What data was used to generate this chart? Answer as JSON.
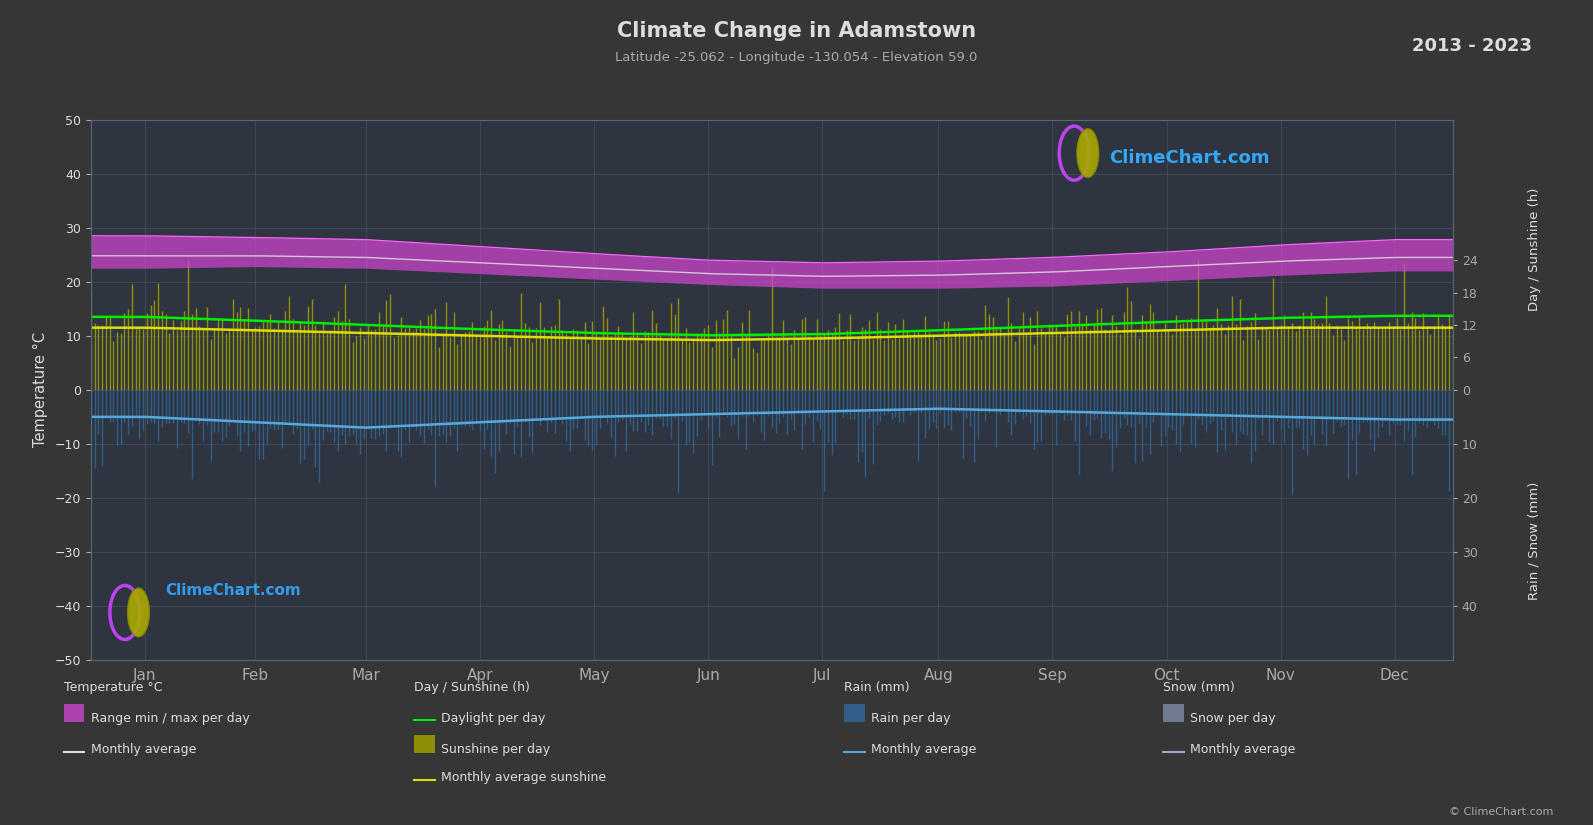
{
  "title": "Climate Change in Adamstown",
  "subtitle": "Latitude -25.062 - Longitude -130.054 - Elevation 59.0",
  "year_range": "2013 - 2023",
  "background_color": "#363636",
  "plot_bg_color": "#2e3540",
  "temp_ylim": [
    -50,
    50
  ],
  "months": [
    "Jan",
    "Feb",
    "Mar",
    "Apr",
    "May",
    "Jun",
    "Jul",
    "Aug",
    "Sep",
    "Oct",
    "Nov",
    "Dec"
  ],
  "temp_max_monthly": [
    28.5,
    28.2,
    27.8,
    26.5,
    25.2,
    24.0,
    23.5,
    23.8,
    24.5,
    25.5,
    26.8,
    27.8
  ],
  "temp_min_monthly": [
    22.5,
    22.8,
    22.5,
    21.5,
    20.5,
    19.5,
    18.8,
    18.8,
    19.2,
    20.2,
    21.2,
    22.0
  ],
  "temp_avg_monthly": [
    24.8,
    24.8,
    24.5,
    23.5,
    22.5,
    21.5,
    21.0,
    21.2,
    21.8,
    22.8,
    23.8,
    24.5
  ],
  "daylight_hours": [
    13.5,
    12.8,
    12.0,
    11.2,
    10.5,
    10.1,
    10.3,
    11.0,
    11.8,
    12.6,
    13.3,
    13.7
  ],
  "sunshine_hours_monthly": [
    11.5,
    11.0,
    10.5,
    10.0,
    9.5,
    9.2,
    9.5,
    10.0,
    10.5,
    11.0,
    11.5,
    11.5
  ],
  "rain_daily_avg_mm": [
    5.0,
    6.0,
    7.0,
    6.0,
    5.0,
    4.5,
    4.0,
    3.5,
    4.0,
    4.5,
    5.0,
    5.5
  ],
  "rain_monthly_avg_mm": [
    5.0,
    6.0,
    7.0,
    6.0,
    5.0,
    4.5,
    4.0,
    3.5,
    4.0,
    4.5,
    5.0,
    5.5
  ],
  "colors": {
    "sunshine_fill": "#999900",
    "rain_fill": "#336699",
    "temp_range_fill": "#cc44cc",
    "daylight_line": "#00ee00",
    "temp_max_line": "#ff66ff",
    "temp_avg_line": "#dddddd",
    "sunshine_avg_line": "#dddd00",
    "rain_avg_line": "#55aadd",
    "grid_color": "#556677",
    "text_color": "#dddddd",
    "tick_color": "#aaaaaa"
  }
}
